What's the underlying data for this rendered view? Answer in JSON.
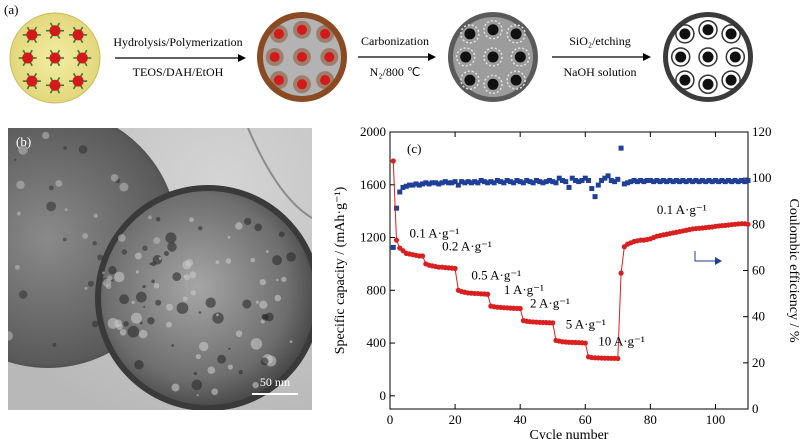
{
  "panel_labels": {
    "a": "(a)",
    "b": "(b)",
    "c": "(c)"
  },
  "scheme": {
    "steps": [
      {
        "top": "Hydrolysis/Polymerization",
        "bottom": "TEOS/DAH/EtOH"
      },
      {
        "top": "Carbonization",
        "bottom": "N₂/800 ℃"
      },
      {
        "top": "SiO₂/etching",
        "bottom": "NaOH solution"
      }
    ]
  },
  "tem": {
    "scale_bar": "50 nm"
  },
  "chart_data": {
    "type": "scatter",
    "xlabel": "Cycle number",
    "ylabel_left": "Specific capacity / (mAh·g⁻¹)",
    "ylabel_right": "Coulombic efficiency / %",
    "xlim": [
      0,
      110
    ],
    "ylim_left": [
      -100,
      2000
    ],
    "ylim_right": [
      0,
      120
    ],
    "x_ticks": [
      0,
      20,
      40,
      60,
      80,
      100
    ],
    "y_ticks_left": [
      0,
      400,
      800,
      1200,
      1600,
      2000
    ],
    "y_ticks_right": [
      0,
      20,
      40,
      60,
      80,
      100,
      120
    ],
    "grid": false,
    "rate_labels": [
      "0.1 A·g⁻¹",
      "0.2 A·g⁻¹",
      "0.5 A·g⁻¹",
      "1 A·g⁻¹",
      "2 A·g⁻¹",
      "5 A·g⁻¹",
      "10 A·g⁻¹",
      "0.1 A·g⁻¹"
    ],
    "capacity_color": "#d92020",
    "efficiency_color": "#1f3f99",
    "capacity": [
      [
        1,
        1780
      ],
      [
        2,
        1180
      ],
      [
        3,
        1120
      ],
      [
        4,
        1100
      ],
      [
        5,
        1080
      ],
      [
        6,
        1075
      ],
      [
        7,
        1070
      ],
      [
        8,
        1065
      ],
      [
        9,
        1060
      ],
      [
        10,
        1060
      ],
      [
        11,
        1000
      ],
      [
        12,
        990
      ],
      [
        13,
        985
      ],
      [
        14,
        980
      ],
      [
        15,
        975
      ],
      [
        16,
        975
      ],
      [
        17,
        972
      ],
      [
        18,
        970
      ],
      [
        19,
        968
      ],
      [
        20,
        965
      ],
      [
        21,
        800
      ],
      [
        22,
        790
      ],
      [
        23,
        785
      ],
      [
        24,
        780
      ],
      [
        25,
        778
      ],
      [
        26,
        776
      ],
      [
        27,
        775
      ],
      [
        28,
        773
      ],
      [
        29,
        772
      ],
      [
        30,
        770
      ],
      [
        31,
        680
      ],
      [
        32,
        675
      ],
      [
        33,
        672
      ],
      [
        34,
        670
      ],
      [
        35,
        668
      ],
      [
        36,
        667
      ],
      [
        37,
        665
      ],
      [
        38,
        664
      ],
      [
        39,
        663
      ],
      [
        40,
        662
      ],
      [
        41,
        570
      ],
      [
        42,
        565
      ],
      [
        43,
        562
      ],
      [
        44,
        560
      ],
      [
        45,
        558
      ],
      [
        46,
        557
      ],
      [
        47,
        556
      ],
      [
        48,
        555
      ],
      [
        49,
        554
      ],
      [
        50,
        553
      ],
      [
        51,
        420
      ],
      [
        52,
        415
      ],
      [
        53,
        410
      ],
      [
        54,
        408
      ],
      [
        55,
        406
      ],
      [
        56,
        405
      ],
      [
        57,
        404
      ],
      [
        58,
        403
      ],
      [
        59,
        402
      ],
      [
        60,
        400
      ],
      [
        61,
        295
      ],
      [
        62,
        290
      ],
      [
        63,
        288
      ],
      [
        64,
        287
      ],
      [
        65,
        286
      ],
      [
        66,
        285
      ],
      [
        67,
        285
      ],
      [
        68,
        284
      ],
      [
        69,
        284
      ],
      [
        70,
        283
      ],
      [
        71,
        930
      ],
      [
        72,
        1130
      ],
      [
        73,
        1150
      ],
      [
        74,
        1160
      ],
      [
        75,
        1170
      ],
      [
        76,
        1175
      ],
      [
        77,
        1180
      ],
      [
        78,
        1180
      ],
      [
        79,
        1185
      ],
      [
        80,
        1190
      ],
      [
        81,
        1200
      ],
      [
        82,
        1210
      ],
      [
        83,
        1215
      ],
      [
        84,
        1220
      ],
      [
        85,
        1225
      ],
      [
        86,
        1230
      ],
      [
        87,
        1235
      ],
      [
        88,
        1240
      ],
      [
        89,
        1245
      ],
      [
        90,
        1250
      ],
      [
        91,
        1255
      ],
      [
        92,
        1260
      ],
      [
        93,
        1265
      ],
      [
        94,
        1268
      ],
      [
        95,
        1270
      ],
      [
        96,
        1272
      ],
      [
        97,
        1275
      ],
      [
        98,
        1278
      ],
      [
        99,
        1280
      ],
      [
        100,
        1285
      ],
      [
        101,
        1288
      ],
      [
        102,
        1290
      ],
      [
        103,
        1292
      ],
      [
        104,
        1295
      ],
      [
        105,
        1298
      ],
      [
        106,
        1300
      ],
      [
        107,
        1303
      ],
      [
        108,
        1305
      ],
      [
        109,
        1305
      ],
      [
        110,
        1300
      ]
    ],
    "efficiency": [
      [
        1,
        70
      ],
      [
        2,
        87
      ],
      [
        3,
        94
      ],
      [
        4,
        96
      ],
      [
        5,
        96.5
      ],
      [
        6,
        97
      ],
      [
        7,
        97
      ],
      [
        8,
        97.5
      ],
      [
        9,
        97
      ],
      [
        10,
        97.5
      ],
      [
        11,
        98
      ],
      [
        12,
        97.5
      ],
      [
        13,
        98
      ],
      [
        14,
        98
      ],
      [
        15,
        97.5
      ],
      [
        16,
        98
      ],
      [
        17,
        98.5
      ],
      [
        18,
        98
      ],
      [
        19,
        98
      ],
      [
        20,
        98.5
      ],
      [
        21,
        97
      ],
      [
        22,
        98.5
      ],
      [
        23,
        98
      ],
      [
        24,
        98.5
      ],
      [
        25,
        98
      ],
      [
        26,
        98.5
      ],
      [
        27,
        98
      ],
      [
        28,
        99
      ],
      [
        29,
        98.5
      ],
      [
        30,
        98
      ],
      [
        31,
        98.5
      ],
      [
        32,
        98
      ],
      [
        33,
        99
      ],
      [
        34,
        98.5
      ],
      [
        35,
        98
      ],
      [
        36,
        99
      ],
      [
        37,
        98.5
      ],
      [
        38,
        98
      ],
      [
        39,
        99
      ],
      [
        40,
        98.5
      ],
      [
        41,
        98
      ],
      [
        42,
        99
      ],
      [
        43,
        98.5
      ],
      [
        44,
        98
      ],
      [
        45,
        99
      ],
      [
        46,
        98.5
      ],
      [
        47,
        98
      ],
      [
        48,
        98.5
      ],
      [
        49,
        99
      ],
      [
        50,
        98.5
      ],
      [
        51,
        98
      ],
      [
        52,
        100
      ],
      [
        53,
        99
      ],
      [
        54,
        98.5
      ],
      [
        55,
        96
      ],
      [
        56,
        100
      ],
      [
        57,
        99
      ],
      [
        58,
        98.5
      ],
      [
        59,
        99
      ],
      [
        60,
        100
      ],
      [
        61,
        99
      ],
      [
        62,
        95.5
      ],
      [
        63,
        92
      ],
      [
        64,
        97
      ],
      [
        65,
        99
      ],
      [
        66,
        100
      ],
      [
        67,
        101
      ],
      [
        68,
        99
      ],
      [
        69,
        98.5
      ],
      [
        70,
        99.5
      ],
      [
        71,
        113
      ],
      [
        72,
        97.5
      ],
      [
        73,
        98
      ],
      [
        74,
        98.5
      ],
      [
        75,
        99
      ],
      [
        76,
        98.5
      ],
      [
        77,
        99
      ],
      [
        78,
        98.5
      ],
      [
        79,
        99
      ],
      [
        80,
        99
      ],
      [
        81,
        98.5
      ],
      [
        82,
        99
      ],
      [
        83,
        98.5
      ],
      [
        84,
        99
      ],
      [
        85,
        98.5
      ],
      [
        86,
        99
      ],
      [
        87,
        98.5
      ],
      [
        88,
        99
      ],
      [
        89,
        98.5
      ],
      [
        90,
        99
      ],
      [
        91,
        98.5
      ],
      [
        92,
        99
      ],
      [
        93,
        98.5
      ],
      [
        94,
        99
      ],
      [
        95,
        98.5
      ],
      [
        96,
        99
      ],
      [
        97,
        98.5
      ],
      [
        98,
        99
      ],
      [
        99,
        98.5
      ],
      [
        100,
        99
      ],
      [
        101,
        98.5
      ],
      [
        102,
        99
      ],
      [
        103,
        98.5
      ],
      [
        104,
        99
      ],
      [
        105,
        98.5
      ],
      [
        106,
        99
      ],
      [
        107,
        98.5
      ],
      [
        108,
        99
      ],
      [
        109,
        98.5
      ],
      [
        110,
        99
      ]
    ]
  }
}
